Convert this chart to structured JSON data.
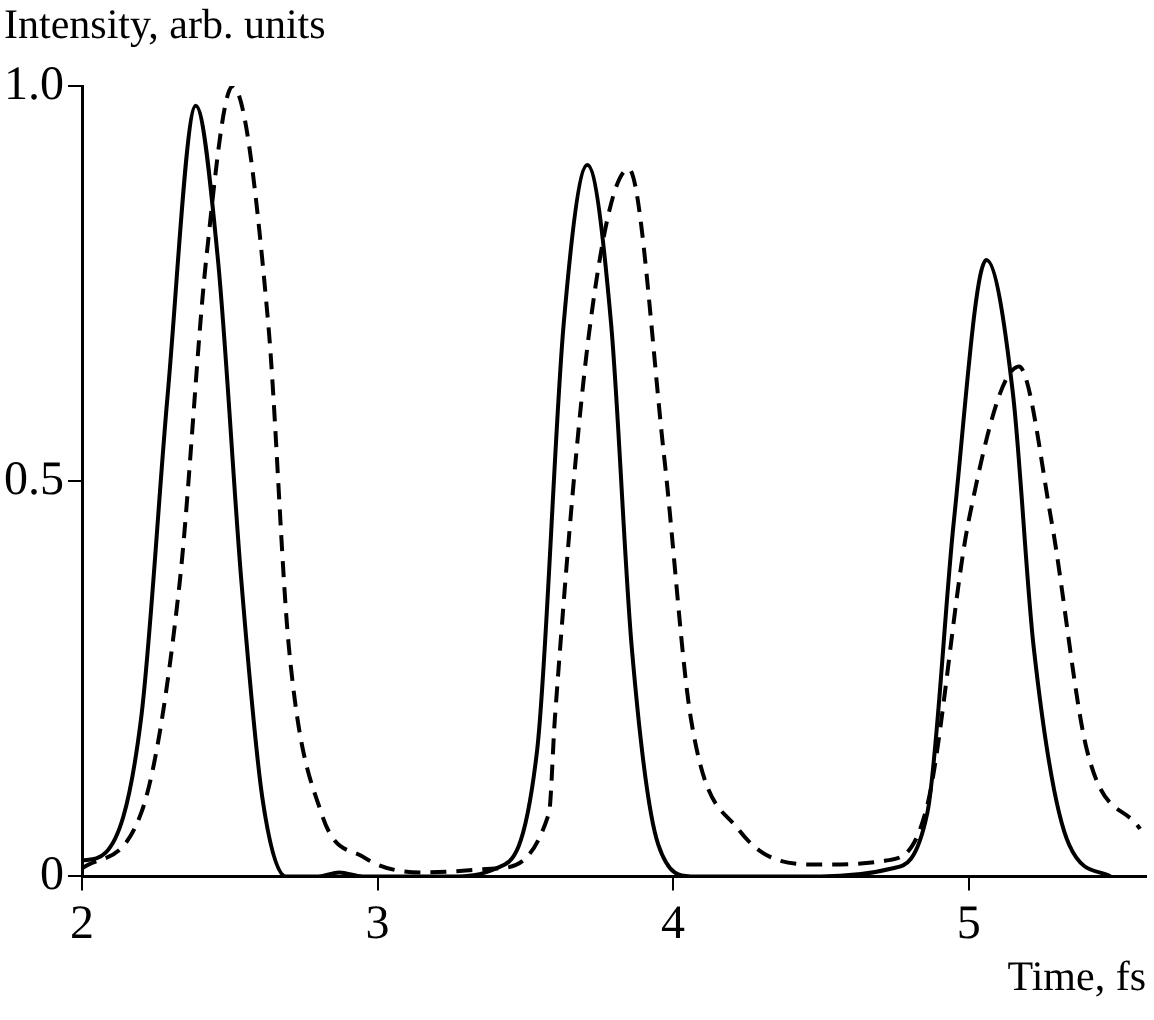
{
  "chart_data": {
    "type": "line",
    "xlabel": "Time, fs",
    "ylabel": "Intensity, arb. units",
    "xlim": [
      2,
      5.6
    ],
    "xticks": [
      2,
      3,
      4,
      5
    ],
    "ylim": [
      0,
      1
    ],
    "yticks": [
      0,
      {
        "value": 0.5,
        "label": "0.5"
      },
      {
        "value": 1,
        "label": "1.0"
      }
    ],
    "grid": false,
    "legend": false,
    "marker": "none",
    "series": [
      {
        "color": "#000000",
        "line_style": "solid",
        "x": [
          2,
          2.08,
          2.2,
          2.29,
          2.385,
          2.46,
          2.54,
          2.61,
          2.69,
          2.8,
          2.87,
          2.95,
          3.1,
          3.25,
          3.4,
          3.54,
          3.63,
          3.71,
          3.79,
          3.86,
          3.95,
          4.06,
          4.3,
          4.5,
          4.74,
          4.86,
          4.95,
          5.06,
          5.15,
          5.22,
          5.34,
          5.48
        ],
        "values": [
          0.02,
          0.03,
          0.2,
          0.61,
          0.975,
          0.78,
          0.37,
          0.1,
          0,
          0,
          0.005,
          0,
          0,
          0,
          0.01,
          0.16,
          0.7,
          0.9,
          0.7,
          0.29,
          0.04,
          0,
          0,
          0,
          0.01,
          0.08,
          0.45,
          0.78,
          0.61,
          0.29,
          0.04,
          0
        ]
      },
      {
        "color": "#000000",
        "line_style": "dashed",
        "x": [
          2,
          2.2,
          2.33,
          2.42,
          2.51,
          2.63,
          2.7,
          2.81,
          2.95,
          3.15,
          3.4,
          3.58,
          3.6,
          3.72,
          3.85,
          3.97,
          4.06,
          4.22,
          4.49,
          4.72,
          4.86,
          5.0,
          5.17,
          5.28,
          5.4,
          5.58
        ],
        "values": [
          0.01,
          0.08,
          0.37,
          0.78,
          1,
          0.7,
          0.29,
          0.08,
          0.025,
          0.005,
          0.01,
          0.08,
          0.2,
          0.7,
          0.895,
          0.53,
          0.2,
          0.06,
          0.015,
          0.02,
          0.09,
          0.45,
          0.645,
          0.45,
          0.16,
          0.06
        ]
      }
    ]
  }
}
